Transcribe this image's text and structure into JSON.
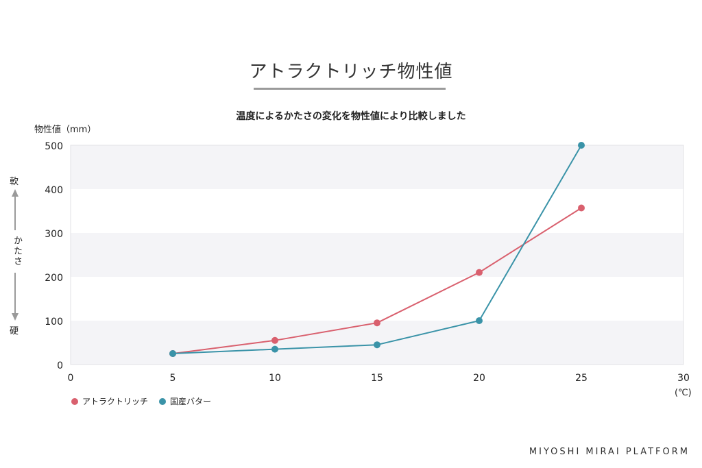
{
  "header": {
    "title": "アトラクトリッチ物性値"
  },
  "footer": {
    "brand": "MIYOSHI MIRAI PLATFORM"
  },
  "side_scale": {
    "top": "軟",
    "middle": "かたさ",
    "bottom": "硬"
  },
  "chart_data": {
    "type": "line",
    "title": "温度によるかたさの変化を物性値により比較しました",
    "ylabel": "物性値（mm）",
    "xunit": "(℃)",
    "xlim": [
      0,
      30
    ],
    "ylim": [
      0,
      500
    ],
    "xticks": [
      0,
      5,
      10,
      15,
      20,
      25,
      30
    ],
    "yticks": [
      0,
      100,
      200,
      300,
      400,
      500
    ],
    "background": "alternating horizontal bands",
    "legend_position": "bottom-left",
    "series": [
      {
        "name": "アトラクトリッチ",
        "color": "#d9606e",
        "x": [
          5,
          10,
          15,
          20,
          25
        ],
        "y": [
          25,
          55,
          95,
          210,
          357
        ]
      },
      {
        "name": "国産バター",
        "color": "#3a93a8",
        "x": [
          5,
          10,
          15,
          20,
          25
        ],
        "y": [
          25,
          35,
          45,
          100,
          500
        ]
      }
    ]
  }
}
